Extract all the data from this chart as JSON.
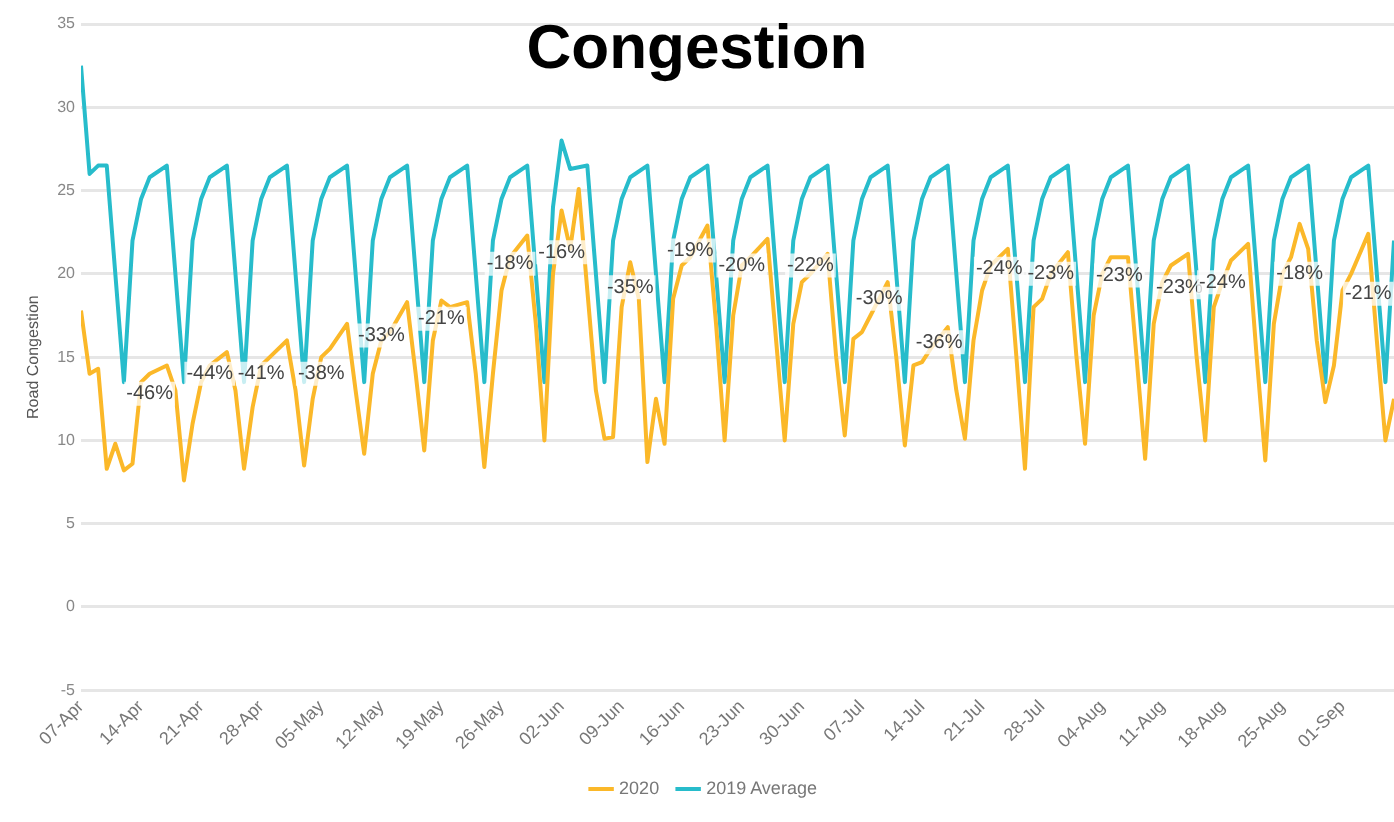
{
  "chart_data": {
    "type": "line",
    "title": "Congestion",
    "ylabel": "Road Congestion",
    "xlim": [
      "--04-07",
      "--09-07"
    ],
    "xticks": [
      {
        "value": "--04-07",
        "label": "07-Apr"
      },
      {
        "value": "--04-14",
        "label": "14-Apr"
      },
      {
        "value": "--04-21",
        "label": "21-Apr"
      },
      {
        "value": "--04-28",
        "label": "28-Apr"
      },
      {
        "value": "--05-05",
        "label": "05-May"
      },
      {
        "value": "--05-12",
        "label": "12-May"
      },
      {
        "value": "--05-19",
        "label": "19-May"
      },
      {
        "value": "--05-26",
        "label": "26-May"
      },
      {
        "value": "--06-02",
        "label": "02-Jun"
      },
      {
        "value": "--06-09",
        "label": "09-Jun"
      },
      {
        "value": "--06-16",
        "label": "16-Jun"
      },
      {
        "value": "--06-23",
        "label": "23-Jun"
      },
      {
        "value": "--06-30",
        "label": "30-Jun"
      },
      {
        "value": "--07-07",
        "label": "07-Jul"
      },
      {
        "value": "--07-14",
        "label": "14-Jul"
      },
      {
        "value": "--07-21",
        "label": "21-Jul"
      },
      {
        "value": "--07-28",
        "label": "28-Jul"
      },
      {
        "value": "--08-04",
        "label": "04-Aug"
      },
      {
        "value": "--08-11",
        "label": "11-Aug"
      },
      {
        "value": "--08-18",
        "label": "18-Aug"
      },
      {
        "value": "--08-25",
        "label": "25-Aug"
      },
      {
        "value": "--09-01",
        "label": "01-Sep"
      }
    ],
    "ylim": [
      -5,
      35
    ],
    "yticks": [
      -5,
      0,
      5,
      10,
      15,
      20,
      25,
      30,
      35
    ],
    "grid": "y",
    "legend": "bottom",
    "marker": "none",
    "series": [
      {
        "name": "2020",
        "color": "#fbb829",
        "x": [
          "--04-07",
          "--04-08",
          "--04-09",
          "--04-10",
          "--04-11",
          "--04-12",
          "--04-13",
          "--04-14",
          "--04-15",
          "--04-17",
          "--04-18",
          "--04-19",
          "--04-20",
          "--04-21",
          "--04-22",
          "--04-24",
          "--04-25",
          "--04-26",
          "--04-27",
          "--04-28",
          "--04-29",
          "--05-01",
          "--05-02",
          "--05-03",
          "--05-04",
          "--05-05",
          "--05-06",
          "--05-08",
          "--05-09",
          "--05-10",
          "--05-11",
          "--05-12",
          "--05-13",
          "--05-15",
          "--05-16",
          "--05-17",
          "--05-18",
          "--05-19",
          "--05-20",
          "--05-22",
          "--05-23",
          "--05-24",
          "--05-25",
          "--05-26",
          "--05-27",
          "--05-29",
          "--05-30",
          "--05-31",
          "--06-01",
          "--06-02",
          "--06-03",
          "--06-04",
          "--06-05",
          "--06-06",
          "--06-07",
          "--06-08",
          "--06-09",
          "--06-10",
          "--06-11",
          "--06-12",
          "--06-13",
          "--06-14",
          "--06-15",
          "--06-16",
          "--06-17",
          "--06-19",
          "--06-20",
          "--06-21",
          "--06-22",
          "--06-23",
          "--06-24",
          "--06-26",
          "--06-27",
          "--06-28",
          "--06-29",
          "--06-30",
          "--07-01",
          "--07-03",
          "--07-04",
          "--07-05",
          "--07-06",
          "--07-07",
          "--07-08",
          "--07-10",
          "--07-11",
          "--07-12",
          "--07-13",
          "--07-14",
          "--07-15",
          "--07-17",
          "--07-18",
          "--07-19",
          "--07-20",
          "--07-21",
          "--07-22",
          "--07-24",
          "--07-25",
          "--07-26",
          "--07-27",
          "--07-28",
          "--07-29",
          "--07-31",
          "--08-01",
          "--08-02",
          "--08-03",
          "--08-04",
          "--08-05",
          "--08-07",
          "--08-08",
          "--08-09",
          "--08-10",
          "--08-11",
          "--08-12",
          "--08-14",
          "--08-15",
          "--08-16",
          "--08-17",
          "--08-18",
          "--08-19",
          "--08-21",
          "--08-22",
          "--08-23",
          "--08-24",
          "--08-25",
          "--08-26",
          "--08-27",
          "--08-28",
          "--08-29",
          "--08-30",
          "--08-31",
          "--09-01",
          "--09-02",
          "--09-04",
          "--09-05",
          "--09-06",
          "--09-07"
        ],
        "values": [
          17.8,
          14,
          14.3,
          8.3,
          9.8,
          8.2,
          8.6,
          13.5,
          14,
          14.5,
          13,
          7.6,
          11,
          13.5,
          14.5,
          15.3,
          13,
          8.3,
          12,
          14.5,
          15,
          16,
          13,
          8.5,
          12.5,
          15,
          15.5,
          17,
          13,
          9.2,
          14,
          16,
          16.5,
          18.3,
          14,
          9.4,
          16,
          18.4,
          18,
          18.3,
          14,
          8.4,
          14,
          19,
          21,
          22.3,
          17,
          10,
          20,
          23.8,
          21.5,
          25.1,
          19,
          13,
          10.1,
          10.2,
          18,
          20.7,
          18.5,
          8.7,
          12.5,
          9.8,
          18.5,
          20.5,
          21,
          22.9,
          17,
          10,
          17.5,
          20.5,
          21,
          22.1,
          16,
          10,
          17,
          19.5,
          20,
          21.2,
          15,
          10.3,
          16.1,
          16.5,
          17.5,
          19.5,
          15,
          9.7,
          14.5,
          14.7,
          15.5,
          16.8,
          13,
          10.1,
          16,
          19,
          20.5,
          21.5,
          15,
          8.3,
          18,
          18.5,
          20,
          21.3,
          15,
          9.8,
          17.5,
          20,
          21,
          21,
          15,
          8.9,
          17,
          19.5,
          20.5,
          21.2,
          15,
          10,
          18,
          19.5,
          20.8,
          21.8,
          15,
          8.8,
          17,
          20,
          21,
          23,
          21.5,
          16,
          12.3,
          14.5,
          19,
          20,
          22.4,
          16,
          10,
          12.5
        ]
      },
      {
        "name": "2019 Average",
        "color": "#27bccb",
        "x": [
          "--04-07",
          "--04-08",
          "--04-09",
          "--04-10",
          "--04-12",
          "--04-13",
          "--04-14",
          "--04-15",
          "--04-17",
          "--04-19",
          "--04-20",
          "--04-21",
          "--04-22",
          "--04-24",
          "--04-26",
          "--04-27",
          "--04-28",
          "--04-29",
          "--05-01",
          "--05-03",
          "--05-04",
          "--05-05",
          "--05-06",
          "--05-08",
          "--05-10",
          "--05-11",
          "--05-12",
          "--05-13",
          "--05-15",
          "--05-17",
          "--05-18",
          "--05-19",
          "--05-20",
          "--05-22",
          "--05-24",
          "--05-25",
          "--05-26",
          "--05-27",
          "--05-29",
          "--05-31",
          "--06-01",
          "--06-02",
          "--06-03",
          "--06-05",
          "--06-07",
          "--06-08",
          "--06-09",
          "--06-10",
          "--06-12",
          "--06-14",
          "--06-15",
          "--06-16",
          "--06-17",
          "--06-19",
          "--06-21",
          "--06-22",
          "--06-23",
          "--06-24",
          "--06-26",
          "--06-28",
          "--06-29",
          "--06-30",
          "--07-01",
          "--07-03",
          "--07-05",
          "--07-06",
          "--07-07",
          "--07-08",
          "--07-10",
          "--07-12",
          "--07-13",
          "--07-14",
          "--07-15",
          "--07-17",
          "--07-19",
          "--07-20",
          "--07-21",
          "--07-22",
          "--07-24",
          "--07-26",
          "--07-27",
          "--07-28",
          "--07-29",
          "--07-31",
          "--08-02",
          "--08-03",
          "--08-04",
          "--08-05",
          "--08-07",
          "--08-09",
          "--08-10",
          "--08-11",
          "--08-12",
          "--08-14",
          "--08-16",
          "--08-17",
          "--08-18",
          "--08-19",
          "--08-21",
          "--08-23",
          "--08-24",
          "--08-25",
          "--08-26",
          "--08-28",
          "--08-30",
          "--08-31",
          "--09-01",
          "--09-02",
          "--09-04",
          "--09-06",
          "--09-07"
        ],
        "values": [
          32.5,
          26,
          26.5,
          26.5,
          13.5,
          22,
          24.5,
          25.8,
          26.5,
          13.5,
          22,
          24.5,
          25.8,
          26.5,
          13.5,
          22,
          24.5,
          25.8,
          26.5,
          13.5,
          22,
          24.5,
          25.8,
          26.5,
          13.5,
          22,
          24.5,
          25.8,
          26.5,
          13.5,
          22,
          24.5,
          25.8,
          26.5,
          13.5,
          22,
          24.5,
          25.8,
          26.5,
          13.5,
          24,
          28,
          26.3,
          26.5,
          13.5,
          22,
          24.5,
          25.8,
          26.5,
          13.5,
          22,
          24.5,
          25.8,
          26.5,
          13.5,
          22,
          24.5,
          25.8,
          26.5,
          13.5,
          22,
          24.5,
          25.8,
          26.5,
          13.5,
          22,
          24.5,
          25.8,
          26.5,
          13.5,
          22,
          24.5,
          25.8,
          26.5,
          13.5,
          22,
          24.5,
          25.8,
          26.5,
          13.5,
          22,
          24.5,
          25.8,
          26.5,
          13.5,
          22,
          24.5,
          25.8,
          26.5,
          13.5,
          22,
          24.5,
          25.8,
          26.5,
          13.5,
          22,
          24.5,
          25.8,
          26.5,
          13.5,
          22,
          24.5,
          25.8,
          26.5,
          13.5,
          22,
          24.5,
          25.8,
          26.5,
          13.5,
          22
        ]
      }
    ],
    "annotations": [
      {
        "text": "-46%",
        "x": "--04-15",
        "y": 12.8
      },
      {
        "text": "-44%",
        "x": "--04-22",
        "y": 14
      },
      {
        "text": "-41%",
        "x": "--04-28",
        "y": 14
      },
      {
        "text": "-38%",
        "x": "--05-05",
        "y": 14
      },
      {
        "text": "-33%",
        "x": "--05-12",
        "y": 16.3
      },
      {
        "text": "-21%",
        "x": "--05-19",
        "y": 17.3
      },
      {
        "text": "-18%",
        "x": "--05-27",
        "y": 20.6
      },
      {
        "text": "-16%",
        "x": "--06-02",
        "y": 21.3
      },
      {
        "text": "-35%",
        "x": "--06-10",
        "y": 19.2
      },
      {
        "text": "-19%",
        "x": "--06-17",
        "y": 21.4
      },
      {
        "text": "-20%",
        "x": "--06-23",
        "y": 20.5
      },
      {
        "text": "-22%",
        "x": "--07-01",
        "y": 20.5
      },
      {
        "text": "-30%",
        "x": "--07-09",
        "y": 18.5
      },
      {
        "text": "-36%",
        "x": "--07-16",
        "y": 15.9
      },
      {
        "text": "-24%",
        "x": "--07-23",
        "y": 20.3
      },
      {
        "text": "-23%",
        "x": "--07-29",
        "y": 20
      },
      {
        "text": "-23%",
        "x": "--08-06",
        "y": 19.9
      },
      {
        "text": "-23%",
        "x": "--08-13",
        "y": 19.2
      },
      {
        "text": "-24%",
        "x": "--08-18",
        "y": 19.5
      },
      {
        "text": "-18%",
        "x": "--08-27",
        "y": 20
      },
      {
        "text": "-21%",
        "x": "--09-04",
        "y": 18.8
      }
    ]
  }
}
